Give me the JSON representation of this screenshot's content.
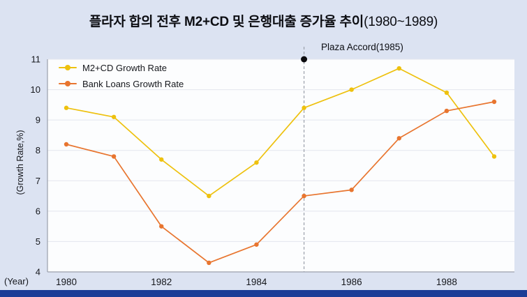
{
  "page": {
    "title_main": "플라자 합의 전후 M2+CD 및 은행대출 증가율 추이",
    "title_suffix": "(1980~1989)"
  },
  "axes": {
    "ylabel": "(Growth Rate,%)",
    "xlabel": "(Year)"
  },
  "legend": {
    "items": [
      {
        "label": "M2+CD Growth Rate"
      },
      {
        "label": "Bank Loans Growth Rate"
      }
    ]
  },
  "annotation": {
    "label": "Plaza Accord(1985)"
  },
  "colors": {
    "background": "#dce3f2",
    "plot_bg": "#fcfdfe",
    "grid": "#e3e6ee",
    "axis": "#9aa0ab",
    "dash": "#9aa0ab",
    "annotation_dot": "#0b0b0e",
    "bottom_bar": "#1c3c96"
  },
  "chart_data": {
    "type": "line",
    "title": "플라자 합의 전후 M2+CD 및 은행대출 증가율 추이(1980~1989)",
    "xlabel": "(Year)",
    "ylabel": "(Growth Rate,%)",
    "x": [
      1980,
      1981,
      1982,
      1983,
      1984,
      1985,
      1986,
      1987,
      1988,
      1989
    ],
    "series": [
      {
        "name": "M2+CD Growth Rate",
        "color": "#eec10e",
        "values": [
          9.4,
          9.1,
          7.7,
          6.5,
          7.6,
          9.4,
          10.0,
          10.7,
          9.9,
          7.8
        ]
      },
      {
        "name": "Bank Loans Growth Rate",
        "color": "#e8752f",
        "values": [
          8.2,
          7.8,
          5.5,
          4.3,
          4.9,
          6.5,
          6.7,
          8.4,
          9.3,
          9.6
        ]
      }
    ],
    "ylim": [
      4,
      11
    ],
    "yticks": [
      4,
      5,
      6,
      7,
      8,
      9,
      10,
      11
    ],
    "xticks": [
      1980,
      1982,
      1984,
      1986,
      1988
    ],
    "grid": "horizontal",
    "legend_position": "top-left",
    "annotation": {
      "label": "Plaza Accord(1985)",
      "x": 1985,
      "dot_y": 11
    }
  }
}
